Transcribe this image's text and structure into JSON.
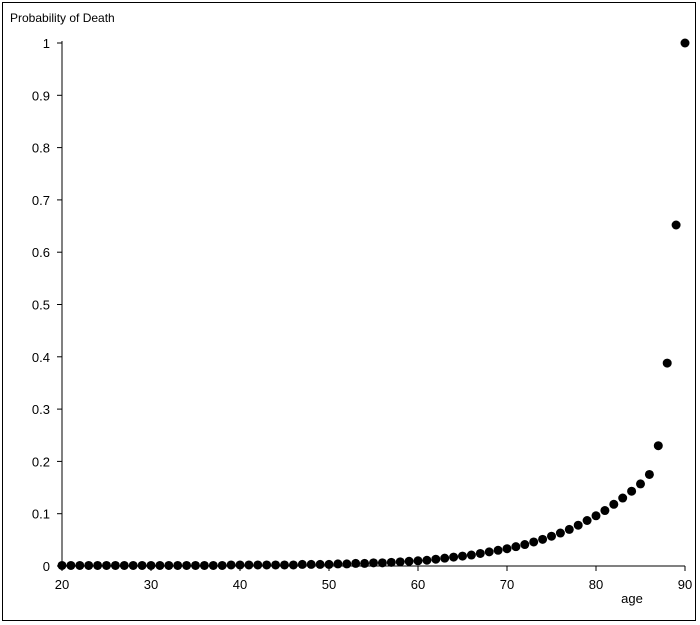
{
  "chart_data": {
    "type": "scatter",
    "title": "",
    "ylabel": "Probability of Death",
    "xlabel": "age",
    "xlim": [
      20,
      90
    ],
    "ylim": [
      0,
      1
    ],
    "x_ticks": [
      20,
      30,
      40,
      50,
      60,
      70,
      80,
      90
    ],
    "y_ticks": [
      0,
      0.1,
      0.2,
      0.3,
      0.4,
      0.5,
      0.6,
      0.7,
      0.8,
      0.9,
      1
    ],
    "grid": false,
    "legend": "none",
    "marker_color": "#000000",
    "series": [
      {
        "x": [
          20,
          21,
          22,
          23,
          24,
          25,
          26,
          27,
          28,
          29,
          30,
          31,
          32,
          33,
          34,
          35,
          36,
          37,
          38,
          39,
          40,
          41,
          42,
          43,
          44,
          45,
          46,
          47,
          48,
          49,
          50,
          51,
          52,
          53,
          54,
          55,
          56,
          57,
          58,
          59,
          60,
          61,
          62,
          63,
          64,
          65,
          66,
          67,
          68,
          69,
          70,
          71,
          72,
          73,
          74,
          75,
          76,
          77,
          78,
          79,
          80,
          81,
          82,
          83,
          84,
          85,
          86,
          87,
          88,
          89,
          90
        ],
        "y": [
          0.001,
          0.001,
          0.001,
          0.001,
          0.001,
          0.001,
          0.001,
          0.001,
          0.001,
          0.001,
          0.001,
          0.001,
          0.001,
          0.001,
          0.001,
          0.001,
          0.001,
          0.001,
          0.001,
          0.002,
          0.002,
          0.002,
          0.002,
          0.002,
          0.002,
          0.002,
          0.002,
          0.003,
          0.003,
          0.003,
          0.003,
          0.004,
          0.004,
          0.005,
          0.005,
          0.006,
          0.006,
          0.007,
          0.008,
          0.009,
          0.01,
          0.011,
          0.013,
          0.015,
          0.017,
          0.019,
          0.021,
          0.024,
          0.027,
          0.03,
          0.033,
          0.037,
          0.041,
          0.046,
          0.051,
          0.057,
          0.063,
          0.07,
          0.078,
          0.087,
          0.096,
          0.106,
          0.118,
          0.13,
          0.143,
          0.157,
          0.175,
          0.23,
          0.388,
          0.652,
          1.0
        ]
      }
    ]
  }
}
